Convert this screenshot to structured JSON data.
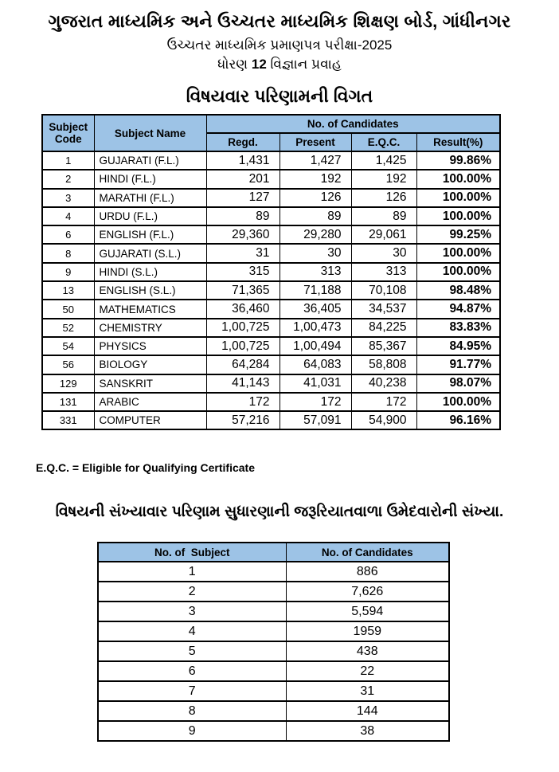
{
  "page": {
    "title_line1": "ગુજરાત માધ્યમિક અને ઉચ્ચતર માધ્યમિક શિક્ષણ બોર્ડ, ગાંધીનગર",
    "title_line2": "ઉચ્ચતર માધ્યમિક પ્રમાણપત્ર પરીક્ષા-2025",
    "title_line3_prefix": "ધોરણ ",
    "title_line3_bold": "12",
    "title_line3_suffix": " વિજ્ઞાન પ્રવાહ",
    "section1_title": "વિષયવાર પરિણામની વિગત",
    "eqc_note": "E.Q.C. = Eligible for Qualifying Certificate",
    "section2_title": "વિષયની સંખ્યાવાર પરિણામ સુધારણાની જરૂરિયાતવાળા ઉમેદવારોની સંખ્યા."
  },
  "colors": {
    "header_fill": "#9DC3E6",
    "border": "#000000",
    "text": "#000000",
    "background": "#FFFFFF"
  },
  "results_table": {
    "headers": {
      "subject_code": "Subject Code",
      "subject_name": "Subject Name",
      "candidates_group": "No. of Candidates",
      "regd": "Regd.",
      "present": "Present",
      "eqc": "E.Q.C.",
      "result": "Result(%)"
    },
    "rows": [
      {
        "code": "1",
        "name": "GUJARATI (F.L.)",
        "regd": "1,431",
        "present": "1,427",
        "eqc": "1,425",
        "result": "99.86%"
      },
      {
        "code": "2",
        "name": "HINDI (F.L.)",
        "regd": "201",
        "present": "192",
        "eqc": "192",
        "result": "100.00%"
      },
      {
        "code": "3",
        "name": "MARATHI (F.L.)",
        "regd": "127",
        "present": "126",
        "eqc": "126",
        "result": "100.00%"
      },
      {
        "code": "4",
        "name": "URDU (F.L.)",
        "regd": "89",
        "present": "89",
        "eqc": "89",
        "result": "100.00%"
      },
      {
        "code": "6",
        "name": "ENGLISH (F.L.)",
        "regd": "29,360",
        "present": "29,280",
        "eqc": "29,061",
        "result": "99.25%"
      },
      {
        "code": "8",
        "name": "GUJARATI (S.L.)",
        "regd": "31",
        "present": "30",
        "eqc": "30",
        "result": "100.00%"
      },
      {
        "code": "9",
        "name": "HINDI (S.L.)",
        "regd": "315",
        "present": "313",
        "eqc": "313",
        "result": "100.00%"
      },
      {
        "code": "13",
        "name": "ENGLISH (S.L.)",
        "regd": "71,365",
        "present": "71,188",
        "eqc": "70,108",
        "result": "98.48%"
      },
      {
        "code": "50",
        "name": "MATHEMATICS",
        "regd": "36,460",
        "present": "36,405",
        "eqc": "34,537",
        "result": "94.87%"
      },
      {
        "code": "52",
        "name": "CHEMISTRY",
        "regd": "1,00,725",
        "present": "1,00,473",
        "eqc": "84,225",
        "result": "83.83%"
      },
      {
        "code": "54",
        "name": "PHYSICS",
        "regd": "1,00,725",
        "present": "1,00,494",
        "eqc": "85,367",
        "result": "84.95%"
      },
      {
        "code": "56",
        "name": "BIOLOGY",
        "regd": "64,284",
        "present": "64,083",
        "eqc": "58,808",
        "result": "91.77%"
      },
      {
        "code": "129",
        "name": "SANSKRIT",
        "regd": "41,143",
        "present": "41,031",
        "eqc": "40,238",
        "result": "98.07%"
      },
      {
        "code": "131",
        "name": "ARABIC",
        "regd": "172",
        "present": "172",
        "eqc": "172",
        "result": "100.00%"
      },
      {
        "code": "331",
        "name": "COMPUTER",
        "regd": "57,216",
        "present": "57,091",
        "eqc": "54,900",
        "result": "96.16%"
      }
    ]
  },
  "improvement_table": {
    "headers": {
      "subjects": "No. of  Subject",
      "candidates": "No. of Candidates"
    },
    "rows": [
      {
        "subjects": "1",
        "candidates": "886"
      },
      {
        "subjects": "2",
        "candidates": "7,626"
      },
      {
        "subjects": "3",
        "candidates": "5,594"
      },
      {
        "subjects": "4",
        "candidates": "1959"
      },
      {
        "subjects": "5",
        "candidates": "438"
      },
      {
        "subjects": "6",
        "candidates": "22"
      },
      {
        "subjects": "7",
        "candidates": "31"
      },
      {
        "subjects": "8",
        "candidates": "144"
      },
      {
        "subjects": "9",
        "candidates": "38"
      }
    ]
  }
}
